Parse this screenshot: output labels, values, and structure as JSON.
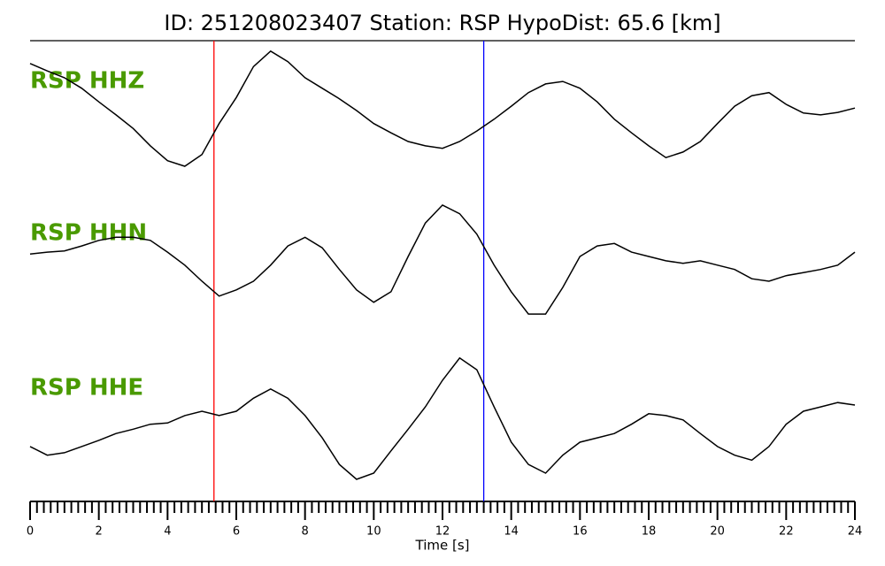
{
  "chart_data": {
    "type": "line",
    "title": "ID: 251208023407   Station: RSP   HypoDist:    65.6 [km]",
    "xlabel": "Time [s]",
    "xlim": [
      0,
      24
    ],
    "xticks": [
      0,
      2,
      4,
      6,
      8,
      10,
      12,
      14,
      16,
      18,
      20,
      22,
      24
    ],
    "xminorticks": [
      0.2,
      0.4,
      0.6,
      0.8,
      1,
      1.2,
      1.4,
      1.6,
      1.8,
      2.2,
      2.4,
      2.6,
      2.8,
      3,
      3.2,
      3.4,
      3.6,
      3.8,
      4.2,
      4.4,
      4.6,
      4.8,
      5,
      5.2,
      5.4,
      5.6,
      5.8,
      6.2,
      6.4,
      6.6,
      6.8,
      7,
      7.2,
      7.4,
      7.6,
      7.8,
      8.2,
      8.4,
      8.6,
      8.8,
      9,
      9.2,
      9.4,
      9.6,
      9.8,
      10.2,
      10.4,
      10.6,
      10.8,
      11,
      11.2,
      11.4,
      11.6,
      11.8,
      12.2,
      12.4,
      12.6,
      12.8,
      13,
      13.2,
      13.4,
      13.6,
      13.8,
      14.2,
      14.4,
      14.6,
      14.8,
      15,
      15.2,
      15.4,
      15.6,
      15.8,
      16.2,
      16.4,
      16.6,
      16.8,
      17,
      17.2,
      17.4,
      17.6,
      17.8,
      18.2,
      18.4,
      18.6,
      18.8,
      19,
      19.2,
      19.4,
      19.6,
      19.8,
      20.2,
      20.4,
      20.6,
      20.8,
      21,
      21.2,
      21.4,
      21.6,
      21.8,
      22.2,
      22.4,
      22.6,
      22.8,
      23,
      23.2,
      23.4,
      23.6,
      23.8
    ],
    "ylim": [
      -1.2,
      1.2
    ],
    "label_color": "#4a9a00",
    "markers": [
      {
        "x": 5.35,
        "color": "#ff0000"
      },
      {
        "x": 13.2,
        "color": "#0000ff"
      }
    ],
    "x": [
      0,
      0.5,
      1,
      1.5,
      2,
      2.5,
      3,
      3.5,
      4,
      4.5,
      5,
      5.5,
      6,
      6.5,
      7,
      7.5,
      8,
      8.5,
      9,
      9.5,
      10,
      10.5,
      11,
      11.5,
      12,
      12.5,
      13,
      13.5,
      14,
      14.5,
      15,
      15.5,
      16,
      16.5,
      17,
      17.5,
      18,
      18.5,
      19,
      19.5,
      20,
      20.5,
      21,
      21.5,
      22,
      22.5,
      23,
      23.5,
      24
    ],
    "series": [
      {
        "name": "RSP HHZ",
        "color": "#000000",
        "values": [
          0.66,
          0.54,
          0.43,
          0.26,
          0.04,
          -0.17,
          -0.39,
          -0.67,
          -0.91,
          -1.0,
          -0.81,
          -0.31,
          0.11,
          0.61,
          0.86,
          0.69,
          0.43,
          0.26,
          0.09,
          -0.1,
          -0.31,
          -0.46,
          -0.6,
          -0.67,
          -0.71,
          -0.6,
          -0.43,
          -0.24,
          -0.03,
          0.19,
          0.33,
          0.37,
          0.26,
          0.04,
          -0.24,
          -0.46,
          -0.67,
          -0.86,
          -0.77,
          -0.6,
          -0.31,
          -0.03,
          0.14,
          0.19,
          0,
          -0.14,
          -0.17,
          -0.13,
          -0.06
        ]
      },
      {
        "name": "RSP HHN",
        "color": "#000000",
        "values": [
          0.04,
          0.07,
          0.09,
          0.17,
          0.26,
          0.31,
          0.31,
          0.26,
          0.07,
          -0.14,
          -0.4,
          -0.64,
          -0.54,
          -0.4,
          -0.14,
          0.17,
          0.31,
          0.14,
          -0.21,
          -0.54,
          -0.74,
          -0.57,
          0,
          0.54,
          0.83,
          0.69,
          0.36,
          -0.14,
          -0.57,
          -0.93,
          -0.93,
          -0.5,
          0,
          0.17,
          0.21,
          0.07,
          0,
          -0.07,
          -0.11,
          -0.07,
          -0.14,
          -0.21,
          -0.36,
          -0.4,
          -0.31,
          -0.26,
          -0.21,
          -0.14,
          0.07
        ]
      },
      {
        "name": "RSP HHE",
        "color": "#000000",
        "values": [
          -0.57,
          -0.71,
          -0.67,
          -0.57,
          -0.47,
          -0.36,
          -0.29,
          -0.21,
          -0.19,
          -0.07,
          0,
          -0.07,
          0,
          0.21,
          0.36,
          0.21,
          -0.07,
          -0.43,
          -0.86,
          -1.1,
          -1.0,
          -0.64,
          -0.29,
          0.07,
          0.5,
          0.86,
          0.67,
          0.07,
          -0.5,
          -0.86,
          -1.0,
          -0.71,
          -0.5,
          -0.43,
          -0.36,
          -0.21,
          -0.04,
          -0.07,
          -0.14,
          -0.36,
          -0.57,
          -0.71,
          -0.79,
          -0.57,
          -0.21,
          0,
          0.07,
          0.14,
          0.1
        ]
      }
    ]
  }
}
